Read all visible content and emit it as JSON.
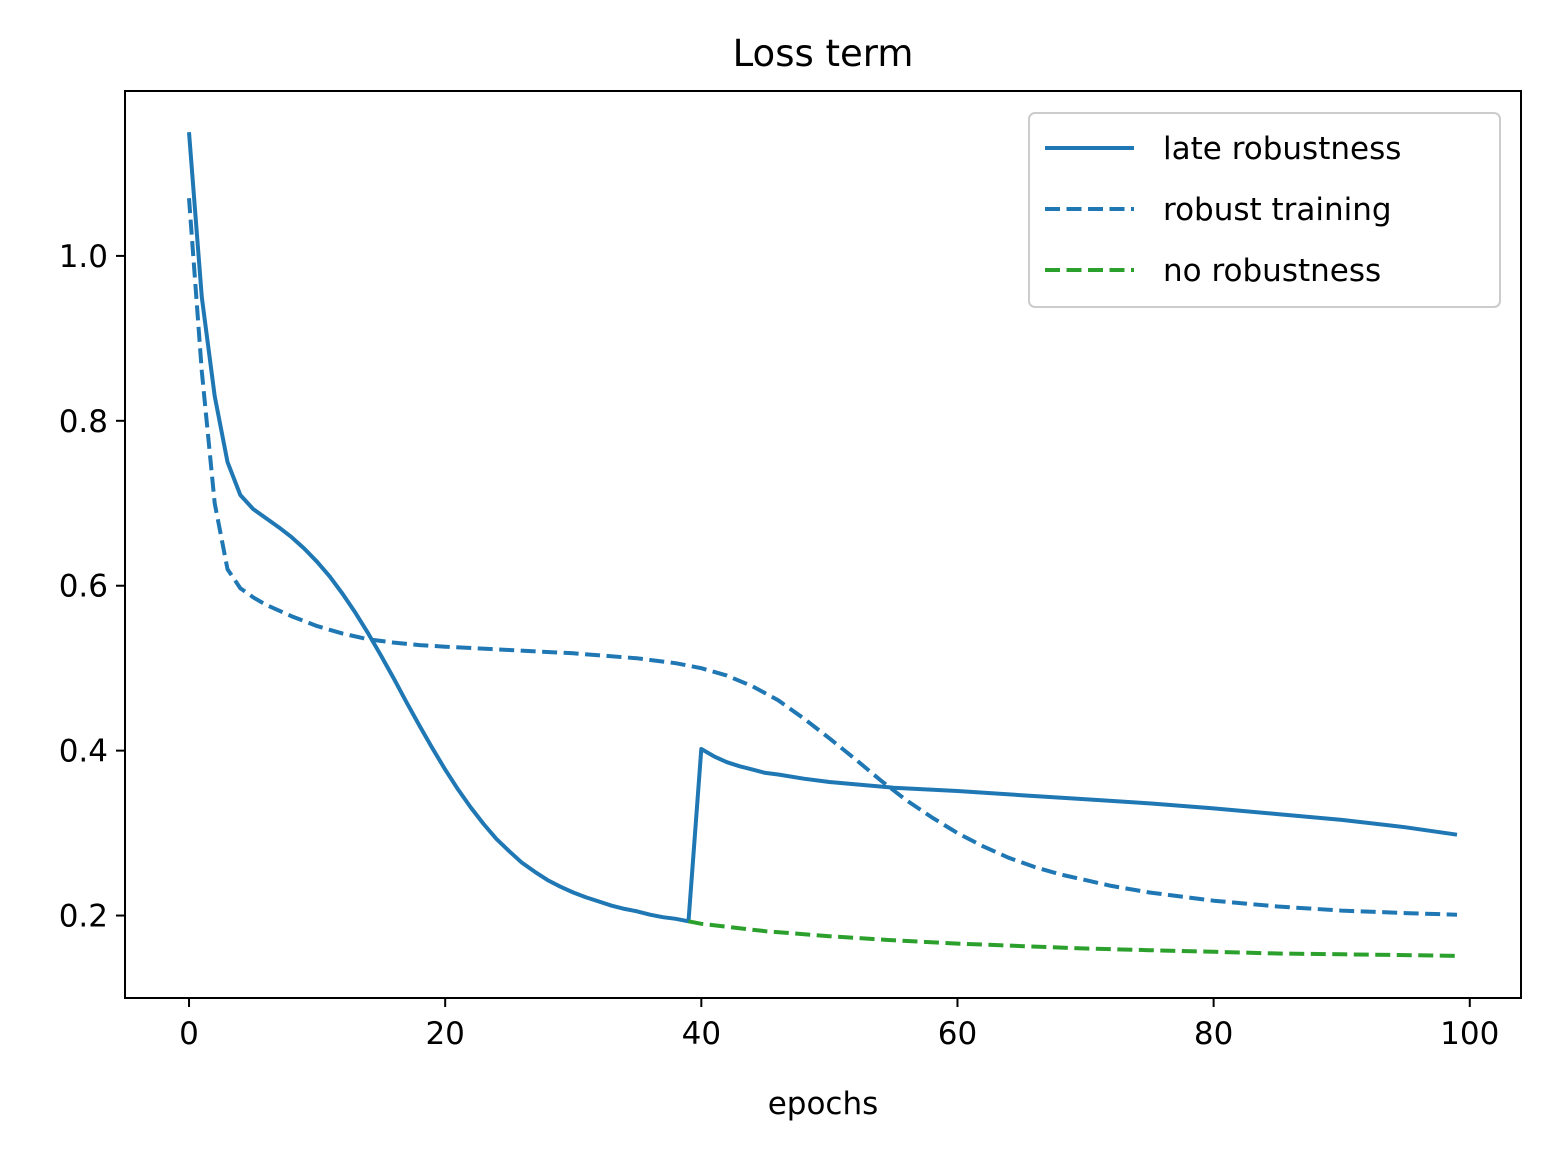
{
  "chart_data": {
    "type": "line",
    "title": "Loss term",
    "xlabel": "epochs",
    "ylabel": "",
    "xlim": [
      -5,
      104
    ],
    "ylim": [
      0.1,
      1.2
    ],
    "xticks": [
      0,
      20,
      40,
      60,
      80,
      100
    ],
    "yticks": [
      0.2,
      0.4,
      0.6,
      0.8,
      1.0
    ],
    "xtick_labels": [
      "0",
      "20",
      "40",
      "60",
      "80",
      "100"
    ],
    "ytick_labels": [
      "0.2",
      "0.4",
      "0.6",
      "0.8",
      "1.0"
    ],
    "grid": false,
    "legend_position": "top-right",
    "series": [
      {
        "name": "late robustness",
        "color": "#1f77b4",
        "style": "solid",
        "x": [
          0,
          1,
          2,
          3,
          4,
          5,
          6,
          7,
          8,
          9,
          10,
          11,
          12,
          13,
          14,
          15,
          16,
          17,
          18,
          19,
          20,
          21,
          22,
          23,
          24,
          25,
          26,
          27,
          28,
          29,
          30,
          31,
          32,
          33,
          34,
          35,
          36,
          37,
          38,
          39,
          40,
          41,
          42,
          43,
          44,
          45,
          46,
          48,
          50,
          55,
          60,
          65,
          70,
          75,
          80,
          85,
          90,
          95,
          99
        ],
        "y": [
          1.15,
          0.95,
          0.83,
          0.75,
          0.71,
          0.693,
          0.682,
          0.671,
          0.659,
          0.645,
          0.629,
          0.611,
          0.59,
          0.567,
          0.542,
          0.515,
          0.487,
          0.458,
          0.43,
          0.403,
          0.377,
          0.353,
          0.331,
          0.311,
          0.293,
          0.278,
          0.264,
          0.253,
          0.243,
          0.235,
          0.228,
          0.222,
          0.217,
          0.212,
          0.208,
          0.205,
          0.201,
          0.198,
          0.196,
          0.193,
          0.402,
          0.393,
          0.386,
          0.381,
          0.377,
          0.373,
          0.371,
          0.366,
          0.362,
          0.355,
          0.351,
          0.346,
          0.341,
          0.336,
          0.33,
          0.323,
          0.316,
          0.307,
          0.298
        ]
      },
      {
        "name": "robust training",
        "color": "#1f77b4",
        "style": "dashed",
        "x": [
          0,
          1,
          2,
          3,
          4,
          5,
          6,
          8,
          10,
          12,
          14,
          16,
          18,
          20,
          25,
          30,
          35,
          38,
          40,
          42,
          44,
          46,
          48,
          50,
          52,
          54,
          56,
          58,
          60,
          62,
          64,
          66,
          68,
          70,
          72,
          75,
          80,
          85,
          90,
          95,
          99
        ],
        "y": [
          1.07,
          0.86,
          0.7,
          0.62,
          0.597,
          0.586,
          0.577,
          0.563,
          0.551,
          0.542,
          0.535,
          0.531,
          0.528,
          0.526,
          0.522,
          0.518,
          0.512,
          0.506,
          0.5,
          0.491,
          0.478,
          0.461,
          0.439,
          0.415,
          0.39,
          0.364,
          0.34,
          0.319,
          0.3,
          0.284,
          0.27,
          0.259,
          0.25,
          0.243,
          0.236,
          0.228,
          0.218,
          0.211,
          0.206,
          0.203,
          0.201
        ]
      },
      {
        "name": "no robustness",
        "color": "#2ca02c",
        "style": "dashed",
        "x": [
          39,
          40,
          45,
          50,
          55,
          60,
          65,
          70,
          75,
          80,
          85,
          90,
          95,
          99
        ],
        "y": [
          0.193,
          0.19,
          0.181,
          0.175,
          0.17,
          0.166,
          0.163,
          0.16,
          0.158,
          0.156,
          0.154,
          0.153,
          0.152,
          0.151
        ]
      }
    ]
  }
}
